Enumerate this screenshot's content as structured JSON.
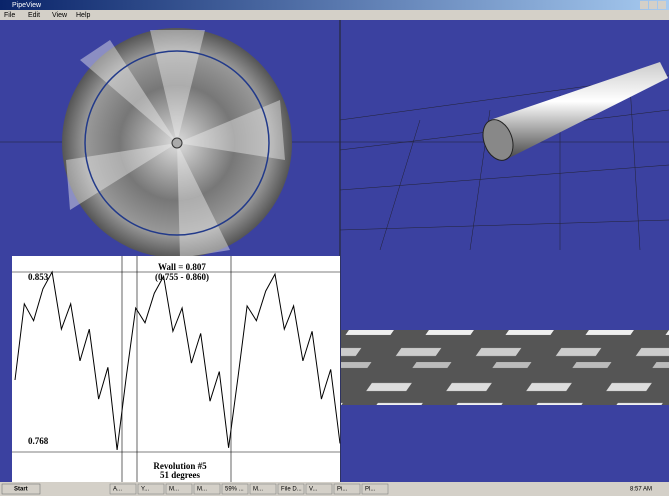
{
  "window": {
    "title": "PipeView",
    "menu": [
      "File",
      "Edit",
      "View",
      "Help"
    ]
  },
  "plot": {
    "max_label": "0.853",
    "min_label": "0.768",
    "ylim": [
      0.768,
      0.853
    ],
    "wall": "Wall = 0.807",
    "range": "(0.755 - 0.860)",
    "revolution": "Revolution #5",
    "angle": "51 degrees",
    "values": [
      0.802,
      0.838,
      0.83,
      0.845,
      0.853,
      0.826,
      0.838,
      0.811,
      0.826,
      0.793,
      0.808,
      0.769,
      0.804,
      0.836,
      0.829,
      0.843,
      0.851,
      0.825,
      0.836,
      0.81,
      0.824,
      0.792,
      0.806,
      0.77,
      0.803,
      0.837,
      0.83,
      0.844,
      0.852,
      0.826,
      0.837,
      0.811,
      0.825,
      0.793,
      0.807,
      0.772
    ]
  },
  "taskbar": {
    "start": "Start",
    "items": [
      "A...",
      "Y...",
      "M...",
      "M...",
      "59% ...",
      "M...",
      "File D...",
      "V...",
      "Pi...",
      "Pl..."
    ],
    "clock": "8:57 AM"
  }
}
